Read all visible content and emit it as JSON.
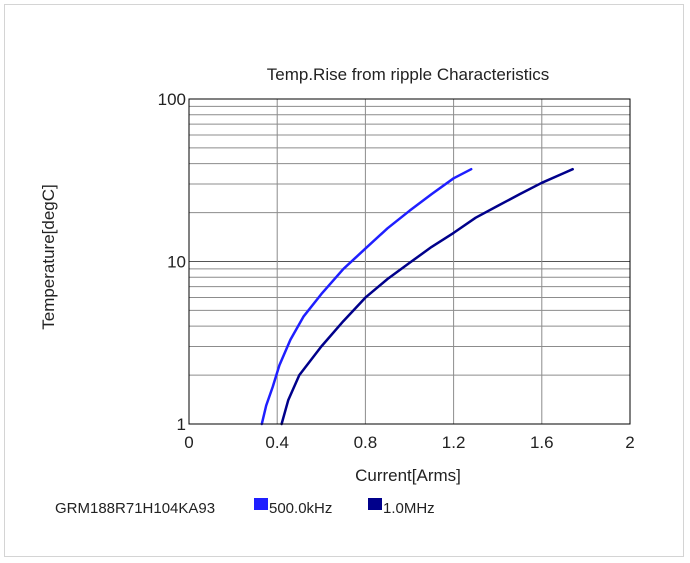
{
  "chart_data": {
    "type": "line",
    "title": "Temp.Rise from ripple Characteristics",
    "xlabel": "Current[Arms]",
    "ylabel": "Temperature[degC]",
    "xlim": [
      0,
      2
    ],
    "ylim": [
      1,
      100
    ],
    "yscale": "log",
    "grid": true,
    "x_ticks": [
      "0",
      "0.4",
      "0.8",
      "1.2",
      "1.6",
      "2"
    ],
    "y_ticks": [
      "1",
      "10",
      "100"
    ],
    "legend": {
      "placement": "bottom-left",
      "part_number": "GRM188R71H104KA93"
    },
    "series": [
      {
        "name": "500.0kHz",
        "color": "#1f1fff",
        "x": [
          0.33,
          0.35,
          0.38,
          0.41,
          0.46,
          0.52,
          0.6,
          0.7,
          0.8,
          0.9,
          1.0,
          1.1,
          1.2,
          1.28
        ],
        "y": [
          1,
          1.3,
          1.7,
          2.3,
          3.3,
          4.6,
          6.3,
          9.0,
          12.0,
          16.0,
          20.5,
          26.0,
          32.5,
          37.0
        ]
      },
      {
        "name": "1.0MHz",
        "color": "#00008b",
        "x": [
          0.42,
          0.45,
          0.5,
          0.6,
          0.7,
          0.8,
          0.9,
          1.0,
          1.1,
          1.2,
          1.3,
          1.4,
          1.5,
          1.6,
          1.7,
          1.74
        ],
        "y": [
          1,
          1.4,
          2.0,
          3.0,
          4.3,
          6.0,
          7.8,
          9.8,
          12.3,
          15.0,
          18.6,
          22.0,
          26.0,
          30.5,
          35.0,
          37.0
        ]
      }
    ]
  }
}
